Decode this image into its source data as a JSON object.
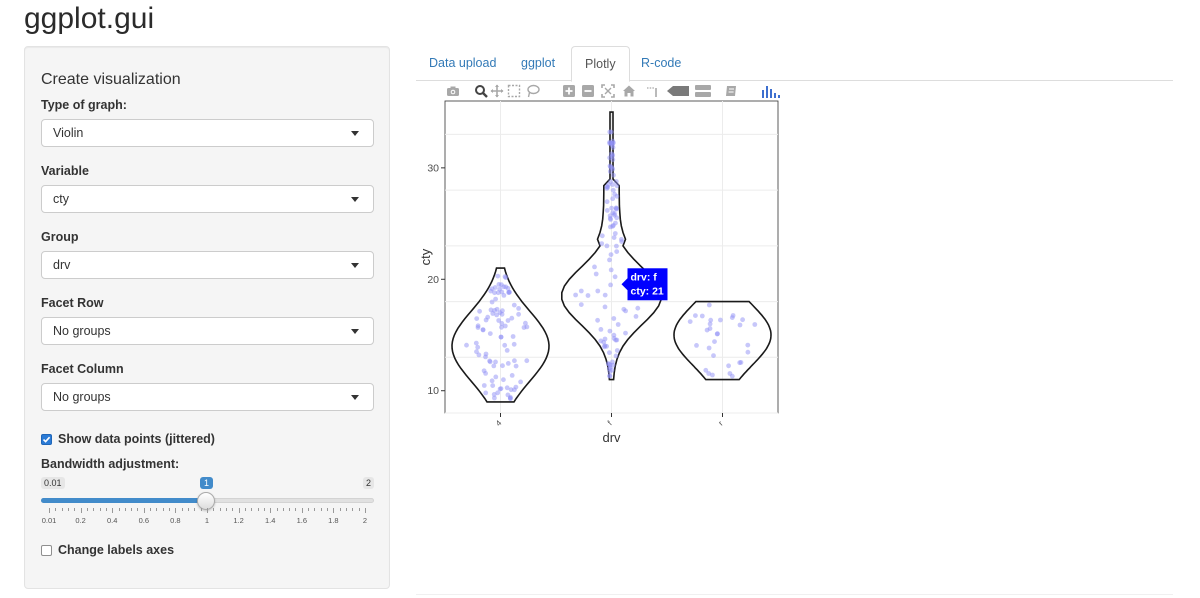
{
  "app": {
    "title": "ggplot.gui"
  },
  "sidebar": {
    "heading": "Create visualization",
    "fields": [
      {
        "label": "Type of graph:",
        "value": "Violin"
      },
      {
        "label": "Variable",
        "value": "cty"
      },
      {
        "label": "Group",
        "value": "drv"
      },
      {
        "label": "Facet Row",
        "value": "No groups"
      },
      {
        "label": "Facet Column",
        "value": "No groups"
      }
    ],
    "show_points": {
      "label": "Show data points (jittered)",
      "checked": true
    },
    "bandwidth": {
      "label": "Bandwidth adjustment:",
      "min": "0.01",
      "max": "2",
      "value": "1",
      "ticks": [
        "0.01",
        "0.2",
        "0.4",
        "0.6",
        "0.8",
        "1",
        "1.2",
        "1.4",
        "1.6",
        "1.8",
        "2"
      ]
    },
    "change_labels": {
      "label": "Change labels axes",
      "checked": false
    }
  },
  "tabs": [
    {
      "label": "Data upload",
      "active": false
    },
    {
      "label": "ggplot",
      "active": false
    },
    {
      "label": "Plotly",
      "active": true
    },
    {
      "label": "R-code",
      "active": false
    }
  ],
  "toolbar_icons": [
    "camera-icon",
    "zoom-icon",
    "pan-icon",
    "box-select-icon",
    "lasso-select-icon",
    "zoom-in-icon",
    "zoom-out-icon",
    "autoscale-icon",
    "reset-axes-icon",
    "spike-lines-icon",
    "hover-closest-icon",
    "hover-compare-icon",
    "collaborate-icon",
    "plotly-logo-icon"
  ],
  "colors": {
    "accent": "#428bca",
    "link": "#337ab7",
    "points": "#8f8ff5",
    "tooltip": "#0000ff"
  },
  "chart_data": {
    "type": "violin",
    "xlabel": "drv",
    "ylabel": "cty",
    "categories": [
      "4",
      "f",
      "r"
    ],
    "ylim": [
      8,
      36
    ],
    "yticks": [
      10,
      20,
      30
    ],
    "grid": true,
    "violins": [
      {
        "category": "4",
        "min": 9,
        "max": 21,
        "mode": 14
      },
      {
        "category": "f",
        "min": 11,
        "max": 35,
        "mode": 19
      },
      {
        "category": "r",
        "min": 11,
        "max": 18,
        "mode": 15
      }
    ],
    "tooltip": {
      "category": "f",
      "lines": [
        "drv: f",
        "cty: 21"
      ]
    }
  }
}
